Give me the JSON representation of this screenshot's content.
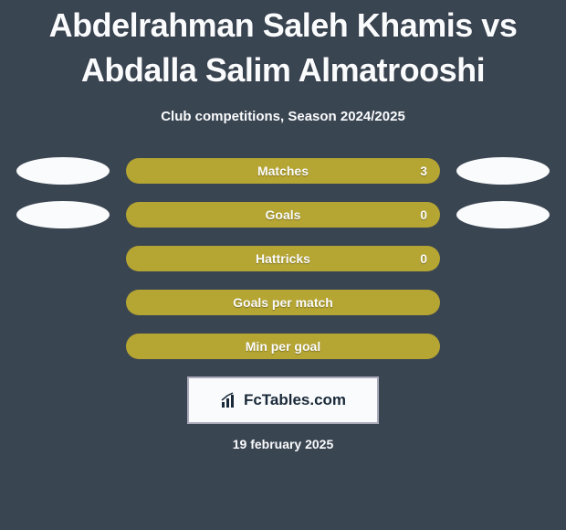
{
  "title": "Abdelrahman Saleh Khamis vs Abdalla Salim Almatrooshi",
  "subtitle": "Club competitions, Season 2024/2025",
  "bar_color": "#b5a532",
  "oval_color": "#fafbfc",
  "text_color": "#fafbfc",
  "background_color": "#3a4552",
  "stats": [
    {
      "label": "Matches",
      "value": "3",
      "show_value": true,
      "left_oval": true,
      "right_oval": true
    },
    {
      "label": "Goals",
      "value": "0",
      "show_value": true,
      "left_oval": true,
      "right_oval": true
    },
    {
      "label": "Hattricks",
      "value": "0",
      "show_value": true,
      "left_oval": false,
      "right_oval": false
    },
    {
      "label": "Goals per match",
      "value": "",
      "show_value": false,
      "left_oval": false,
      "right_oval": false
    },
    {
      "label": "Min per goal",
      "value": "",
      "show_value": false,
      "left_oval": false,
      "right_oval": false
    }
  ],
  "badge": {
    "text": "FcTables.com"
  },
  "date": "19 february 2025"
}
